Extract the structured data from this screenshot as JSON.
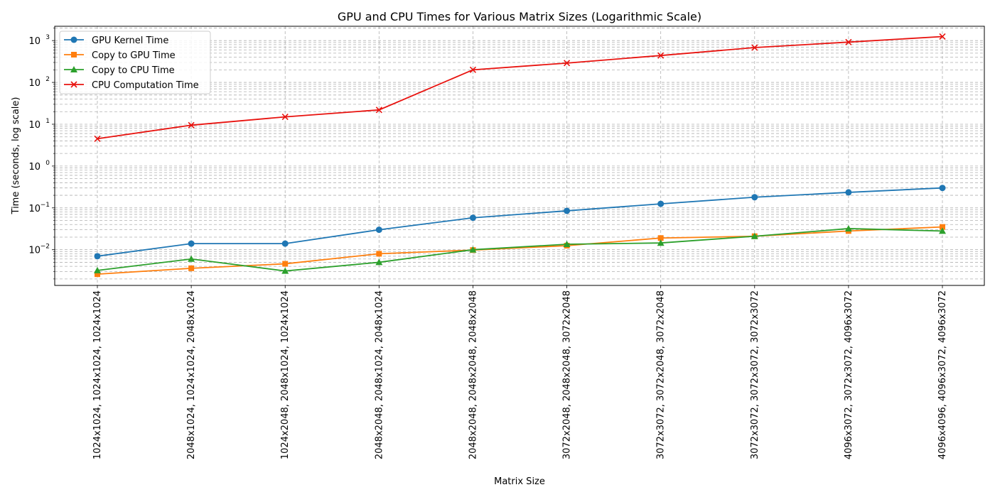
{
  "chart_data": {
    "type": "line",
    "title": "GPU and CPU Times for Various Matrix Sizes (Logarithmic Scale)",
    "xlabel": "Matrix Size",
    "ylabel": "Time (seconds, log scale)",
    "yscale": "log",
    "ylim": [
      0.0014,
      2200
    ],
    "y_ticks": [
      0.01,
      0.1,
      1,
      10,
      100,
      1000
    ],
    "y_tick_labels": [
      {
        "base": "10",
        "exp": "−2"
      },
      {
        "base": "10",
        "exp": "−1"
      },
      {
        "base": "10",
        "exp": "0"
      },
      {
        "base": "10",
        "exp": "1"
      },
      {
        "base": "10",
        "exp": "2"
      },
      {
        "base": "10",
        "exp": "3"
      }
    ],
    "grid": true,
    "legend_position": "top-left",
    "categories": [
      "1024x1024, 1024x1024, 1024x1024",
      "2048x1024, 1024x1024, 2048x1024",
      "1024x2048, 2048x1024, 1024x1024",
      "2048x2048, 2048x1024, 2048x1024",
      "2048x2048, 2048x2048, 2048x2048",
      "3072x2048, 2048x2048, 3072x2048",
      "3072x3072, 3072x2048, 3072x2048",
      "3072x3072, 3072x3072, 3072x3072",
      "4096x3072, 3072x3072, 4096x3072",
      "4096x4096, 4096x3072, 4096x3072"
    ],
    "series": [
      {
        "name": "GPU Kernel Time",
        "color": "#1f77b4",
        "marker": "circle",
        "values": [
          0.007,
          0.014,
          0.014,
          0.03,
          0.058,
          0.085,
          0.125,
          0.18,
          0.235,
          0.3
        ]
      },
      {
        "name": "Copy to GPU Time",
        "color": "#ff7f0e",
        "marker": "square",
        "values": [
          0.0026,
          0.0036,
          0.0046,
          0.008,
          0.0098,
          0.0125,
          0.019,
          0.021,
          0.028,
          0.035
        ]
      },
      {
        "name": "Copy to CPU Time",
        "color": "#2ca02c",
        "marker": "triangle",
        "values": [
          0.0032,
          0.006,
          0.0031,
          0.005,
          0.01,
          0.0135,
          0.0145,
          0.021,
          0.032,
          0.028
        ]
      },
      {
        "name": "CPU Computation Time",
        "color": "#e8120e",
        "marker": "x",
        "values": [
          4.5,
          9.5,
          15,
          22,
          200,
          290,
          440,
          680,
          920,
          1250
        ]
      }
    ]
  }
}
